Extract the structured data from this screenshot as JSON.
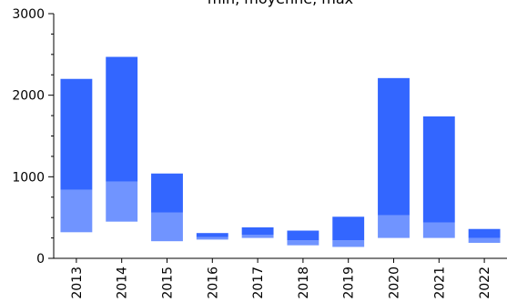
{
  "chart_data": {
    "type": "bar",
    "title": "min, moyenne, max",
    "categories": [
      "2013",
      "2014",
      "2015",
      "2016",
      "2017",
      "2018",
      "2019",
      "2020",
      "2021",
      "2022"
    ],
    "series": [
      {
        "name": "min",
        "values": [
          320,
          450,
          210,
          230,
          250,
          160,
          140,
          250,
          250,
          190
        ]
      },
      {
        "name": "moyenne",
        "values": [
          840,
          940,
          560,
          260,
          290,
          220,
          220,
          530,
          440,
          250
        ]
      },
      {
        "name": "max",
        "values": [
          2200,
          2470,
          1040,
          310,
          380,
          340,
          510,
          2210,
          1740,
          360
        ]
      }
    ],
    "xlabel": "",
    "ylabel": "",
    "ylim": [
      0,
      3000
    ],
    "yticks": [
      0,
      1000,
      2000,
      3000
    ],
    "grid": false,
    "colors": {
      "upper": "#3366ff",
      "lower": "#7094ff"
    }
  }
}
